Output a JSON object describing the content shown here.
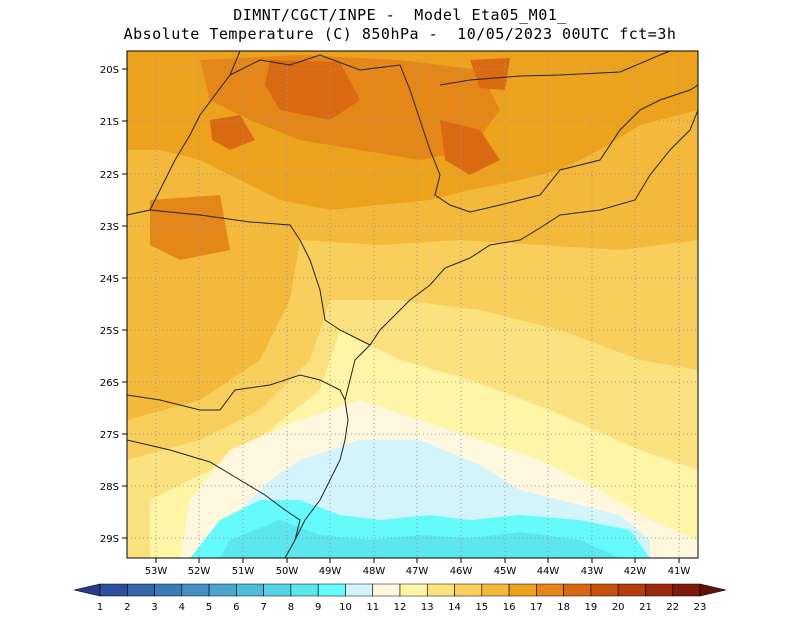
{
  "header": {
    "line1": "DIMNT/CGCT/INPE -  Model Eta05_M01_",
    "line2": "Absolute Temperature (C) 850hPa -  10/05/2023 00UTC fct=3h"
  },
  "axes": {
    "lat_labels": [
      "20S",
      "21S",
      "22S",
      "23S",
      "24S",
      "25S",
      "26S",
      "27S",
      "28S",
      "29S"
    ],
    "lon_labels": [
      "53W",
      "52W",
      "51W",
      "50W",
      "49W",
      "48W",
      "47W",
      "46W",
      "45W",
      "44W",
      "43W",
      "42W",
      "41W"
    ]
  },
  "colorbar": {
    "labels": [
      "1",
      "2",
      "3",
      "4",
      "5",
      "6",
      "7",
      "8",
      "9",
      "10",
      "11",
      "12",
      "13",
      "14",
      "15",
      "16",
      "17",
      "18",
      "19",
      "20",
      "21",
      "22",
      "23"
    ],
    "colors": [
      "#2a3b8f",
      "#2e4f9f",
      "#3565ab",
      "#3b7bb7",
      "#4391c3",
      "#48a6cf",
      "#4fbcd9",
      "#55d2e4",
      "#5ce6ee",
      "#66fbfb",
      "#d4f4fb",
      "#fff8de",
      "#fff5a6",
      "#fce27e",
      "#f8cf5c",
      "#f4b93b",
      "#eda21d",
      "#e48618",
      "#d96a12",
      "#c9520f",
      "#b43c0d",
      "#9c280c",
      "#80170a",
      "#631009"
    ]
  }
}
